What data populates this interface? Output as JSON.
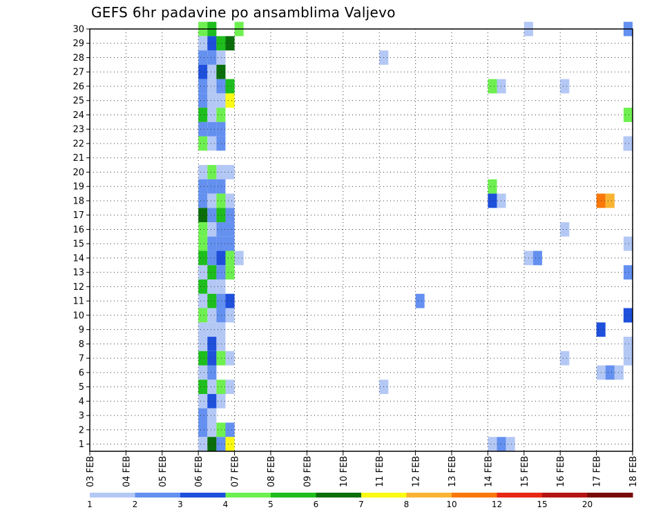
{
  "chart_data": {
    "type": "heatmap",
    "title": "GEFS 6hr padavine po ansamblima Valjevo",
    "xlabel": "",
    "ylabel": "",
    "x_ticks": [
      "03 FEB",
      "04 FEB",
      "05 FEB",
      "06 FEB",
      "07 FEB",
      "08 FEB",
      "09 FEB",
      "10 FEB",
      "11 FEB",
      "12 FEB",
      "13 FEB",
      "14 FEB",
      "15 FEB",
      "16 FEB",
      "17 FEB",
      "18 FEB"
    ],
    "y_range": [
      1,
      30
    ],
    "y_ticks": [
      1,
      2,
      3,
      4,
      5,
      6,
      7,
      8,
      9,
      10,
      11,
      12,
      13,
      14,
      15,
      16,
      17,
      18,
      19,
      20,
      21,
      22,
      23,
      24,
      25,
      26,
      27,
      28,
      29,
      30
    ],
    "steps_per_day": 4,
    "grid": true,
    "colorbar": {
      "position": "bottom",
      "labels": [
        "1",
        "2",
        "3",
        "4",
        "5",
        "6",
        "7",
        "8",
        "10",
        "12",
        "15",
        "20"
      ],
      "colors": [
        "#b4c8f5",
        "#6490f0",
        "#1e50dc",
        "#6ef050",
        "#1ebe1e",
        "#0a6e0a",
        "#fafa14",
        "#fab432",
        "#fa780a",
        "#e62814",
        "#b41414",
        "#780a0a"
      ]
    },
    "cells": [
      [
        30,
        4,
        4
      ],
      [
        30,
        4,
        5
      ],
      [
        30,
        5,
        4
      ],
      [
        30,
        13,
        1
      ],
      [
        30,
        17,
        1
      ],
      [
        30,
        17,
        2
      ],
      [
        29,
        4,
        1
      ],
      [
        29,
        4,
        3
      ],
      [
        29,
        4,
        5
      ],
      [
        29,
        4,
        6
      ],
      [
        28,
        4,
        2
      ],
      [
        28,
        4,
        2
      ],
      [
        28,
        4,
        1
      ],
      [
        28,
        9,
        1
      ],
      [
        27,
        4,
        3
      ],
      [
        27,
        4,
        1
      ],
      [
        27,
        4,
        6
      ],
      [
        26,
        4,
        2
      ],
      [
        26,
        4,
        1
      ],
      [
        26,
        4,
        2
      ],
      [
        26,
        4,
        5
      ],
      [
        26,
        12,
        4
      ],
      [
        26,
        12,
        1
      ],
      [
        26,
        14,
        1
      ],
      [
        25,
        4,
        2
      ],
      [
        25,
        4,
        1
      ],
      [
        25,
        4,
        1
      ],
      [
        25,
        4,
        7
      ],
      [
        24,
        4,
        5
      ],
      [
        24,
        4,
        1
      ],
      [
        24,
        4,
        4
      ],
      [
        24,
        18,
        4
      ],
      [
        23,
        4,
        2
      ],
      [
        23,
        4,
        2
      ],
      [
        23,
        4,
        2
      ],
      [
        22,
        4,
        4
      ],
      [
        22,
        4,
        1
      ],
      [
        22,
        4,
        2
      ],
      [
        22,
        17,
        3
      ],
      [
        22,
        17,
        2
      ],
      [
        22,
        17,
        1
      ],
      [
        22,
        17,
        1
      ],
      [
        20,
        4,
        1
      ],
      [
        20,
        4,
        4
      ],
      [
        20,
        4,
        1
      ],
      [
        20,
        4,
        1
      ],
      [
        19,
        4,
        2
      ],
      [
        19,
        4,
        2
      ],
      [
        19,
        4,
        2
      ],
      [
        19,
        12,
        4
      ],
      [
        18,
        4,
        2
      ],
      [
        18,
        4,
        1
      ],
      [
        18,
        4,
        4
      ],
      [
        18,
        4,
        1
      ],
      [
        18,
        12,
        3
      ],
      [
        18,
        12,
        1
      ],
      [
        18,
        15,
        9
      ],
      [
        18,
        15,
        8
      ],
      [
        17,
        4,
        6
      ],
      [
        17,
        4,
        2
      ],
      [
        17,
        4,
        5
      ],
      [
        17,
        4,
        2
      ],
      [
        16,
        4,
        4
      ],
      [
        16,
        4,
        1
      ],
      [
        16,
        4,
        2
      ],
      [
        16,
        4,
        2
      ],
      [
        16,
        14,
        1
      ],
      [
        15,
        4,
        4
      ],
      [
        15,
        4,
        2
      ],
      [
        15,
        4,
        2
      ],
      [
        15,
        4,
        2
      ],
      [
        15,
        17,
        1
      ],
      [
        14,
        4,
        5
      ],
      [
        14,
        4,
        2
      ],
      [
        14,
        4,
        3
      ],
      [
        14,
        4,
        4
      ],
      [
        14,
        4,
        1
      ],
      [
        14,
        13,
        1
      ],
      [
        14,
        13,
        2
      ],
      [
        13,
        4,
        1
      ],
      [
        13,
        4,
        5
      ],
      [
        13,
        4,
        2
      ],
      [
        13,
        4,
        4
      ],
      [
        13,
        19,
        2
      ],
      [
        12,
        4,
        5
      ],
      [
        12,
        4,
        1
      ],
      [
        12,
        4,
        1
      ],
      [
        11,
        4,
        1
      ],
      [
        11,
        4,
        5
      ],
      [
        11,
        4,
        2
      ],
      [
        11,
        4,
        3
      ],
      [
        11,
        10,
        2
      ],
      [
        10,
        4,
        4
      ],
      [
        10,
        4,
        1
      ],
      [
        10,
        4,
        2
      ],
      [
        10,
        4,
        1
      ],
      [
        10,
        18,
        2
      ],
      [
        10,
        18,
        1
      ],
      [
        10,
        19,
        1
      ],
      [
        10,
        19,
        3
      ],
      [
        9,
        4,
        1
      ],
      [
        9,
        4,
        1
      ],
      [
        9,
        4,
        1
      ],
      [
        9,
        15,
        3
      ],
      [
        8,
        4,
        1
      ],
      [
        8,
        4,
        3
      ],
      [
        8,
        4,
        1
      ],
      [
        8,
        18,
        2
      ],
      [
        8,
        18,
        1
      ],
      [
        7,
        4,
        5
      ],
      [
        7,
        4,
        3
      ],
      [
        7,
        4,
        4
      ],
      [
        7,
        4,
        1
      ],
      [
        7,
        14,
        1
      ],
      [
        7,
        17,
        1
      ],
      [
        7,
        17,
        1
      ],
      [
        6,
        4,
        1
      ],
      [
        6,
        4,
        2
      ],
      [
        6,
        15,
        1
      ],
      [
        6,
        15,
        2
      ],
      [
        6,
        15,
        1
      ],
      [
        5,
        4,
        5
      ],
      [
        5,
        4,
        1
      ],
      [
        5,
        4,
        4
      ],
      [
        5,
        4,
        1
      ],
      [
        5,
        9,
        1
      ],
      [
        4,
        4,
        1
      ],
      [
        4,
        4,
        3
      ],
      [
        4,
        4,
        1
      ],
      [
        3,
        4,
        2
      ],
      [
        3,
        4,
        1
      ],
      [
        2,
        4,
        2
      ],
      [
        2,
        4,
        1
      ],
      [
        2,
        4,
        4
      ],
      [
        2,
        4,
        2
      ],
      [
        1,
        4,
        1
      ],
      [
        1,
        4,
        6
      ],
      [
        1,
        4,
        2
      ],
      [
        1,
        4,
        7
      ],
      [
        1,
        12,
        1
      ],
      [
        1,
        12,
        2
      ],
      [
        1,
        12,
        1
      ]
    ]
  }
}
